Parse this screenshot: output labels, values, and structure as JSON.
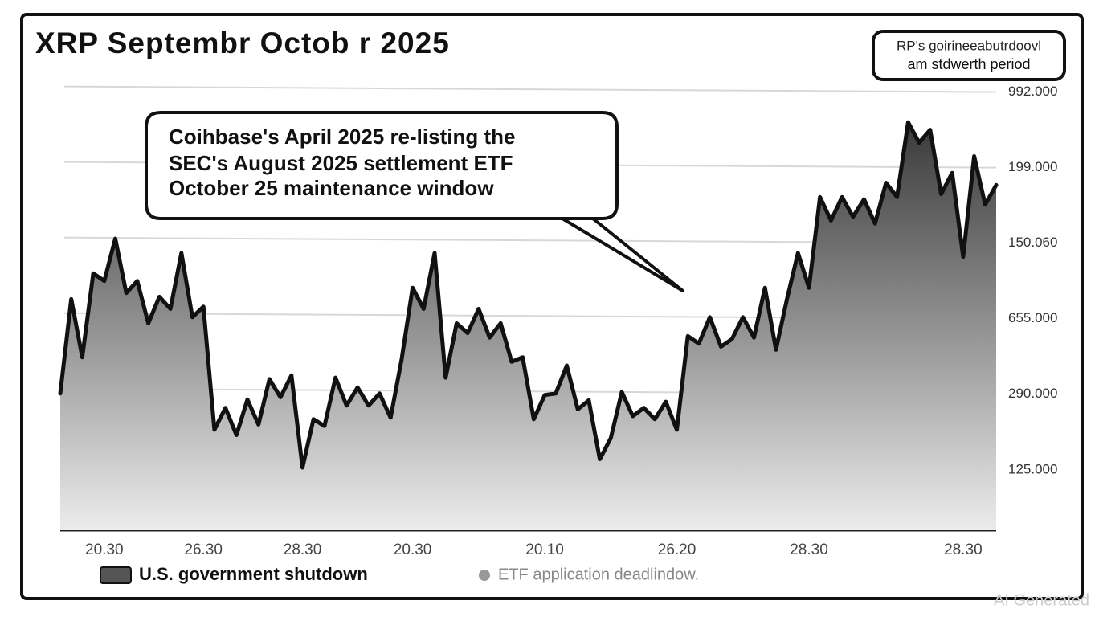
{
  "chart_data": {
    "type": "area",
    "title": "XRP Septembr Octob r 2025",
    "callout": [
      "Coihbase's April 2025 re-listing the",
      "SEC's August 2025 settlement ETF",
      "October 25 maintenance window"
    ],
    "corner_note": [
      "RP's goirineeabutrdoovl",
      "am stdwerth period"
    ],
    "legend_note": "ETF application deadlindow.",
    "watermark": "AI Generated",
    "categories": [
      null,
      null,
      null,
      null,
      "20.30",
      null,
      null,
      null,
      null,
      null,
      null,
      null,
      null,
      "26.30",
      null,
      null,
      null,
      null,
      null,
      null,
      null,
      null,
      "28.30",
      null,
      null,
      null,
      null,
      null,
      null,
      null,
      null,
      null,
      "20.30",
      null,
      null,
      null,
      null,
      null,
      null,
      null,
      null,
      null,
      null,
      null,
      "20.10",
      null,
      null,
      null,
      null,
      null,
      null,
      null,
      null,
      null,
      null,
      null,
      "26.20",
      null,
      null,
      null,
      null,
      null,
      null,
      null,
      null,
      null,
      null,
      null,
      "28.30",
      null,
      null,
      null,
      null,
      null,
      null,
      null,
      null,
      null,
      null,
      null,
      null,
      null,
      "28.30",
      null,
      null,
      null
    ],
    "series": [
      {
        "name": "U.S. government shutdown",
        "color": "#111111",
        "values": [
          2.01,
          3.26,
          2.49,
          3.6,
          3.5,
          4.06,
          3.34,
          3.5,
          2.94,
          3.29,
          3.13,
          3.87,
          3.02,
          3.16,
          1.53,
          1.82,
          1.46,
          1.93,
          1.6,
          2.2,
          1.96,
          2.25,
          1.03,
          1.67,
          1.58,
          2.22,
          1.85,
          2.09,
          1.85,
          2.01,
          1.69,
          2.46,
          3.41,
          3.13,
          3.87,
          2.22,
          2.94,
          2.81,
          3.13,
          2.75,
          2.94,
          2.43,
          2.49,
          1.67,
          1.99,
          2.01,
          2.38,
          1.8,
          1.92,
          1.14,
          1.42,
          2.03,
          1.71,
          1.82,
          1.67,
          1.9,
          1.53,
          2.77,
          2.67,
          3.02,
          2.63,
          2.73,
          3.02,
          2.75,
          3.41,
          2.59,
          3.26,
          3.87,
          3.41,
          4.61,
          4.3,
          4.61,
          4.35,
          4.58,
          4.26,
          4.8,
          4.61,
          5.6,
          5.33,
          5.5,
          4.65,
          4.93,
          3.82,
          5.15,
          4.51,
          4.77
        ]
      }
    ],
    "ylim": [
      0.2,
      6.4
    ],
    "yticks": [
      {
        "value": 1,
        "label": "125.000"
      },
      {
        "value": 2,
        "label": "290.000"
      },
      {
        "value": 3,
        "label": "655.000"
      },
      {
        "value": 4,
        "label": "150.060"
      },
      {
        "value": 5,
        "label": "199.000"
      },
      {
        "value": 6,
        "label": "992.000"
      }
    ],
    "grid": true
  }
}
